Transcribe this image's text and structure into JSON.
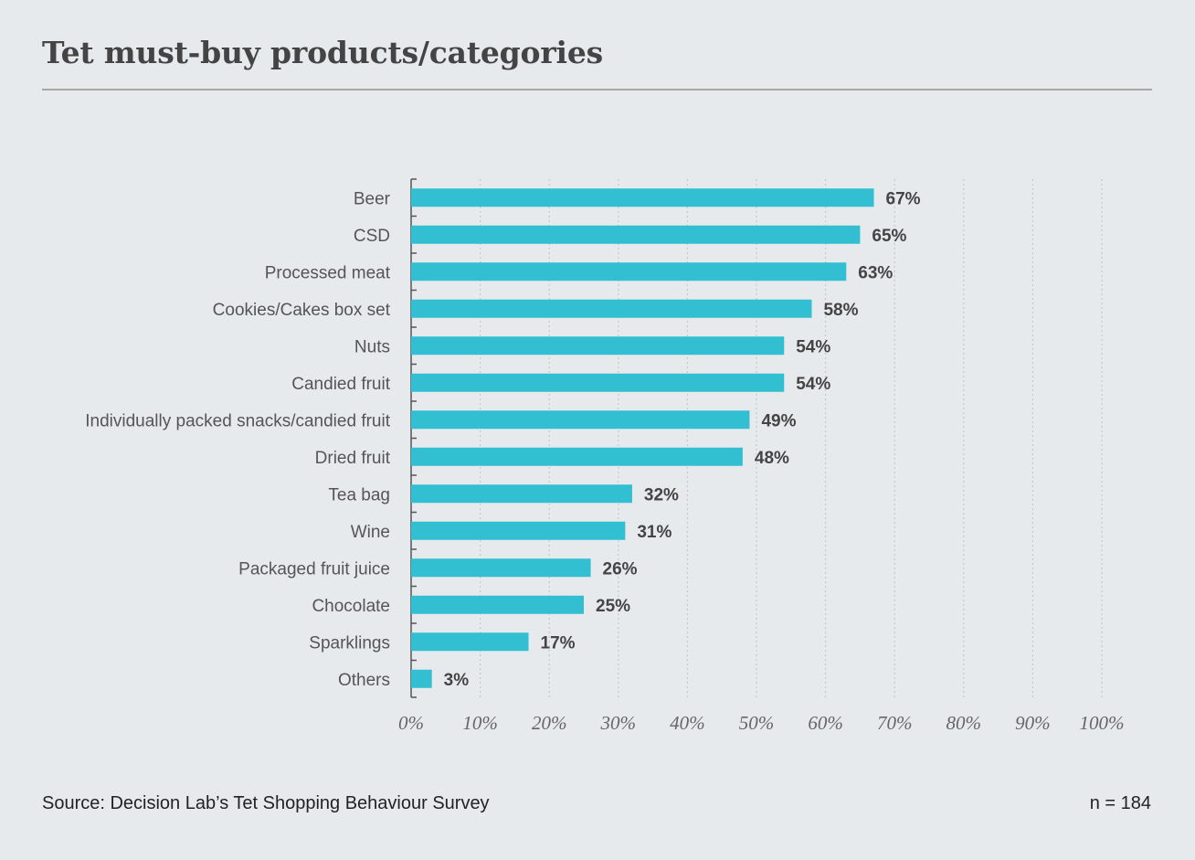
{
  "header": {
    "title": "Tet must-buy products/categories"
  },
  "footer": {
    "source": "Source: Decision Lab’s Tet Shopping Behaviour Survey",
    "sample": "n = 184"
  },
  "colors": {
    "bar": "#31bfd1",
    "background": "#e6eaec",
    "axis": "#555555",
    "grid": "#c3c8cb"
  },
  "chart_data": {
    "type": "bar",
    "orientation": "horizontal",
    "title": "Tet must-buy products/categories",
    "xlabel": "",
    "ylabel": "",
    "xlim": [
      0,
      100
    ],
    "grid": true,
    "categories": [
      "Beer",
      "CSD",
      "Processed meat",
      "Cookies/Cakes box set",
      "Nuts",
      "Candied fruit",
      "Individually packed snacks/candied fruit",
      "Dried fruit",
      "Tea bag",
      "Wine",
      "Packaged fruit juice",
      "Chocolate",
      "Sparklings",
      "Others"
    ],
    "values": [
      67,
      65,
      63,
      58,
      54,
      54,
      49,
      48,
      32,
      31,
      26,
      25,
      17,
      3
    ],
    "value_labels": [
      "67%",
      "65%",
      "63%",
      "58%",
      "54%",
      "54%",
      "49%",
      "48%",
      "32%",
      "31%",
      "26%",
      "25%",
      "17%",
      "3%"
    ],
    "x_ticks": [
      0,
      10,
      20,
      30,
      40,
      50,
      60,
      70,
      80,
      90,
      100
    ],
    "x_tick_labels": [
      "0%",
      "10%",
      "20%",
      "30%",
      "40%",
      "50%",
      "60%",
      "70%",
      "80%",
      "90%",
      "100%"
    ]
  }
}
